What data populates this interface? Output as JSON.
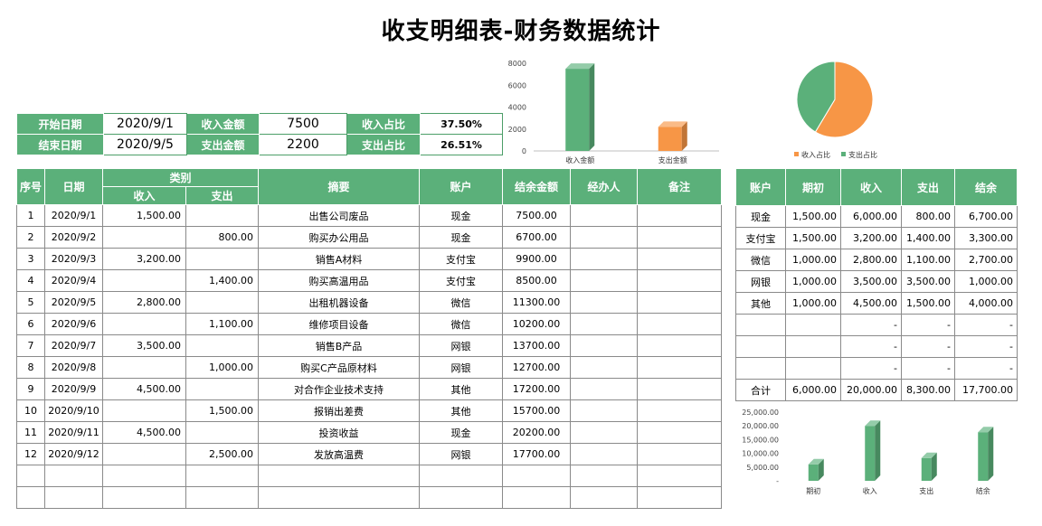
{
  "title": "收支明细表-财务数据统计",
  "summary": {
    "start_label": "开始日期",
    "start_value": "2020/9/1",
    "end_label": "结束日期",
    "end_value": "2020/9/5",
    "income_label": "收入金额",
    "income_value": "7500",
    "expense_label": "支出金额",
    "expense_value": "2200",
    "income_ratio_label": "收入占比",
    "income_ratio_value": "37.50%",
    "expense_ratio_label": "支出占比",
    "expense_ratio_value": "26.51%"
  },
  "main_table": {
    "headers": {
      "seq": "序号",
      "date": "日期",
      "category": "类别",
      "income": "收入",
      "expense": "支出",
      "summary": "摘要",
      "account": "账户",
      "balance": "结余金额",
      "handler": "经办人",
      "remark": "备注"
    },
    "rows": [
      {
        "seq": "1",
        "date": "2020/9/1",
        "income": "1,500.00",
        "expense": "",
        "summary": "出售公司废品",
        "account": "现金",
        "balance": "7500.00"
      },
      {
        "seq": "2",
        "date": "2020/9/2",
        "income": "",
        "expense": "800.00",
        "summary": "购买办公用品",
        "account": "现金",
        "balance": "6700.00"
      },
      {
        "seq": "3",
        "date": "2020/9/3",
        "income": "3,200.00",
        "expense": "",
        "summary": "销售A材料",
        "account": "支付宝",
        "balance": "9900.00"
      },
      {
        "seq": "4",
        "date": "2020/9/4",
        "income": "",
        "expense": "1,400.00",
        "summary": "购买高温用品",
        "account": "支付宝",
        "balance": "8500.00"
      },
      {
        "seq": "5",
        "date": "2020/9/5",
        "income": "2,800.00",
        "expense": "",
        "summary": "出租机器设备",
        "account": "微信",
        "balance": "11300.00"
      },
      {
        "seq": "6",
        "date": "2020/9/6",
        "income": "",
        "expense": "1,100.00",
        "summary": "维修项目设备",
        "account": "微信",
        "balance": "10200.00"
      },
      {
        "seq": "7",
        "date": "2020/9/7",
        "income": "3,500.00",
        "expense": "",
        "summary": "销售B产品",
        "account": "网银",
        "balance": "13700.00"
      },
      {
        "seq": "8",
        "date": "2020/9/8",
        "income": "",
        "expense": "1,000.00",
        "summary": "购买C产品原材料",
        "account": "网银",
        "balance": "12700.00"
      },
      {
        "seq": "9",
        "date": "2020/9/9",
        "income": "4,500.00",
        "expense": "",
        "summary": "对合作企业技术支持",
        "account": "其他",
        "balance": "17200.00"
      },
      {
        "seq": "10",
        "date": "2020/9/10",
        "income": "",
        "expense": "1,500.00",
        "summary": "报销出差费",
        "account": "其他",
        "balance": "15700.00"
      },
      {
        "seq": "11",
        "date": "2020/9/11",
        "income": "4,500.00",
        "expense": "",
        "summary": "投资收益",
        "account": "现金",
        "balance": "20200.00"
      },
      {
        "seq": "12",
        "date": "2020/9/12",
        "income": "",
        "expense": "2,500.00",
        "summary": "发放高温费",
        "account": "网银",
        "balance": "17700.00"
      }
    ]
  },
  "account_table": {
    "headers": {
      "account": "账户",
      "opening": "期初",
      "income": "收入",
      "expense": "支出",
      "balance": "结余"
    },
    "rows": [
      {
        "account": "现金",
        "opening": "1,500.00",
        "income": "6,000.00",
        "expense": "800.00",
        "balance": "6,700.00"
      },
      {
        "account": "支付宝",
        "opening": "1,500.00",
        "income": "3,200.00",
        "expense": "1,400.00",
        "balance": "3,300.00"
      },
      {
        "account": "微信",
        "opening": "1,000.00",
        "income": "2,800.00",
        "expense": "1,100.00",
        "balance": "2,700.00"
      },
      {
        "account": "网银",
        "opening": "1,000.00",
        "income": "3,500.00",
        "expense": "3,500.00",
        "balance": "1,000.00"
      },
      {
        "account": "其他",
        "opening": "1,000.00",
        "income": "4,500.00",
        "expense": "1,500.00",
        "balance": "4,000.00"
      },
      {
        "account": "",
        "opening": "",
        "income": "-",
        "expense": "-",
        "balance": "-"
      },
      {
        "account": "",
        "opening": "",
        "income": "-",
        "expense": "-",
        "balance": "-"
      },
      {
        "account": "",
        "opening": "",
        "income": "-",
        "expense": "-",
        "balance": "-"
      }
    ],
    "total": {
      "account": "合计",
      "opening": "6,000.00",
      "income": "20,000.00",
      "expense": "8,300.00",
      "balance": "17,700.00"
    }
  },
  "colors": {
    "green": "#5bb07a",
    "orange": "#f79646",
    "border": "#8a8a8a"
  },
  "chart_data": [
    {
      "type": "bar",
      "categories": [
        "收入金额",
        "支出金额"
      ],
      "values": [
        7500,
        2200
      ],
      "colors": [
        "#5bb07a",
        "#f79646"
      ],
      "ylim": [
        0,
        8000
      ],
      "yticks": [
        "0",
        "2000",
        "4000",
        "6000",
        "8000"
      ],
      "grid": false
    },
    {
      "type": "pie",
      "labels": [
        "收入占比",
        "支出占比"
      ],
      "values": [
        37.5,
        26.51
      ],
      "colors": [
        "#f79646",
        "#5bb07a"
      ],
      "legend": "bottom"
    },
    {
      "type": "bar",
      "categories": [
        "期初",
        "收入",
        "支出",
        "结余"
      ],
      "values": [
        6000,
        20000,
        8300,
        17700
      ],
      "color": "#5bb07a",
      "ylim": [
        0,
        25000
      ],
      "yticks": [
        "-",
        "5,000.00",
        "10,000.00",
        "15,000.00",
        "20,000.00",
        "25,000.00"
      ],
      "grid": false
    }
  ]
}
